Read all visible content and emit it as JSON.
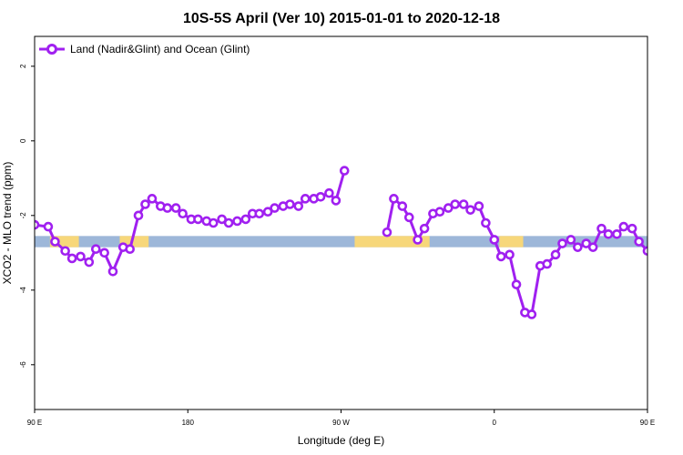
{
  "chart_data": {
    "type": "line",
    "title": "10S-5S April (Ver 10)   2015-01-01 to 2020-12-18",
    "xlabel": "Longitude (deg E)",
    "ylabel": "XCO2 - MLO trend (ppm)",
    "xlim": [
      90,
      450
    ],
    "ylim": [
      -7.2,
      2.8
    ],
    "x_ticks": [
      {
        "value": 90,
        "label": "90 E"
      },
      {
        "value": 180,
        "label": "180"
      },
      {
        "value": 270,
        "label": "90 W"
      },
      {
        "value": 360,
        "label": "0"
      },
      {
        "value": 450,
        "label": "90 E"
      },
      {
        "value": 540,
        "label": "180"
      }
    ],
    "y_ticks": [
      {
        "value": 2,
        "label": "2"
      },
      {
        "value": 0,
        "label": "0"
      },
      {
        "value": -2,
        "label": "-2"
      },
      {
        "value": -4,
        "label": "-4"
      },
      {
        "value": -6,
        "label": "-6"
      }
    ],
    "grid": false,
    "legend_position": "top-left",
    "land_strip": {
      "y_range": [
        -2.85,
        -2.55
      ],
      "ocean_color": "#9db7d9",
      "land_color": "#f7d77a",
      "land_segments": [
        [
          99,
          116
        ],
        [
          140,
          157
        ],
        [
          278,
          322
        ],
        [
          363,
          377
        ],
        [
          475,
          485
        ],
        [
          493,
          522
        ]
      ]
    },
    "series": [
      {
        "name": "Land (Nadir&Glint) and Ocean (Glint)",
        "color": "#a020f0",
        "segments": [
          [
            [
              90,
              -2.25
            ],
            [
              98,
              -2.3
            ],
            [
              102,
              -2.7
            ],
            [
              108,
              -2.95
            ],
            [
              112,
              -3.15
            ],
            [
              117,
              -3.1
            ],
            [
              122,
              -3.25
            ],
            [
              126,
              -2.9
            ],
            [
              131,
              -3.0
            ],
            [
              136,
              -3.5
            ],
            [
              142,
              -2.85
            ],
            [
              146,
              -2.9
            ],
            [
              151,
              -2.0
            ],
            [
              155,
              -1.7
            ],
            [
              159,
              -1.55
            ],
            [
              164,
              -1.75
            ],
            [
              168,
              -1.8
            ],
            [
              173,
              -1.8
            ],
            [
              177,
              -1.95
            ],
            [
              182,
              -2.1
            ],
            [
              186,
              -2.1
            ],
            [
              191,
              -2.15
            ],
            [
              195,
              -2.2
            ],
            [
              200,
              -2.1
            ],
            [
              204,
              -2.2
            ],
            [
              209,
              -2.15
            ],
            [
              214,
              -2.1
            ],
            [
              218,
              -1.95
            ],
            [
              222,
              -1.95
            ],
            [
              227,
              -1.9
            ],
            [
              231,
              -1.8
            ],
            [
              236,
              -1.75
            ],
            [
              240,
              -1.7
            ],
            [
              245,
              -1.75
            ],
            [
              249,
              -1.55
            ],
            [
              254,
              -1.55
            ],
            [
              258,
              -1.5
            ],
            [
              263,
              -1.4
            ],
            [
              267,
              -1.6
            ],
            [
              272,
              -0.8
            ]
          ],
          [
            [
              297,
              -2.45
            ],
            [
              301,
              -1.55
            ],
            [
              306,
              -1.75
            ],
            [
              310,
              -2.05
            ],
            [
              315,
              -2.65
            ],
            [
              319,
              -2.35
            ],
            [
              324,
              -1.95
            ],
            [
              328,
              -1.9
            ],
            [
              333,
              -1.8
            ],
            [
              337,
              -1.7
            ],
            [
              342,
              -1.7
            ],
            [
              346,
              -1.85
            ],
            [
              351,
              -1.75
            ],
            [
              355,
              -2.2
            ],
            [
              360,
              -2.65
            ],
            [
              364,
              -3.1
            ],
            [
              369,
              -3.05
            ],
            [
              373,
              -3.85
            ],
            [
              378,
              -4.6
            ],
            [
              382,
              -4.65
            ],
            [
              387,
              -3.35
            ],
            [
              391,
              -3.3
            ],
            [
              396,
              -3.05
            ],
            [
              400,
              -2.75
            ],
            [
              405,
              -2.65
            ],
            [
              409,
              -2.85
            ],
            [
              414,
              -2.75
            ],
            [
              418,
              -2.85
            ],
            [
              423,
              -2.35
            ],
            [
              427,
              -2.5
            ],
            [
              432,
              -2.5
            ],
            [
              436,
              -2.3
            ],
            [
              441,
              -2.35
            ],
            [
              445,
              -2.7
            ],
            [
              450,
              -2.95
            ]
          ]
        ]
      }
    ]
  }
}
